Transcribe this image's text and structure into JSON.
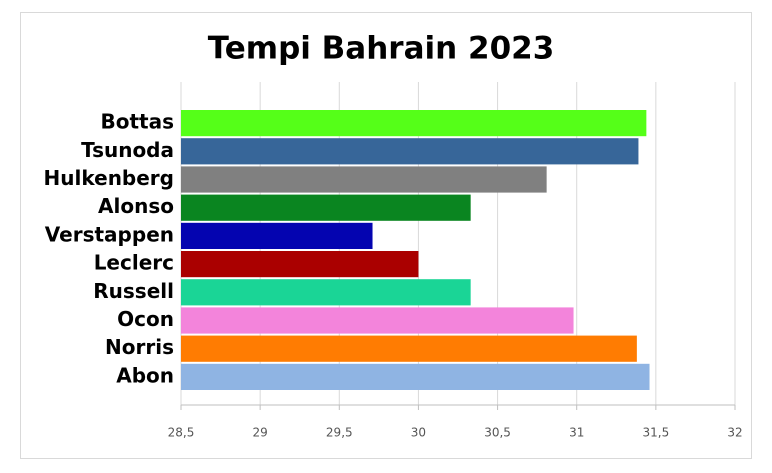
{
  "chart_data": {
    "type": "bar",
    "title": "Tempi Bahrain 2023",
    "categories": [
      "Bottas",
      "Tsunoda",
      "Hulkenberg",
      "Alonso",
      "Verstappen",
      "Leclerc",
      "Russell",
      "Ocon",
      "Norris",
      "Abon"
    ],
    "values": [
      31.44,
      31.39,
      30.81,
      30.33,
      29.71,
      30.0,
      30.33,
      30.98,
      31.38,
      31.46
    ],
    "colors": [
      "#55ff18",
      "#376699",
      "#808080",
      "#0a8520",
      "#0404b0",
      "#aa0000",
      "#1ad596",
      "#f384db",
      "#ff7c02",
      "#8fb4e3"
    ],
    "xlim": [
      28.5,
      32
    ],
    "xticks": [
      {
        "value": 28.5,
        "label": "28,5"
      },
      29,
      {
        "value": 29.5,
        "label": "29,5"
      },
      30,
      {
        "value": 30.5,
        "label": "30,5"
      },
      31,
      {
        "value": 31.5,
        "label": "31,5"
      },
      32
    ],
    "grid": true
  }
}
